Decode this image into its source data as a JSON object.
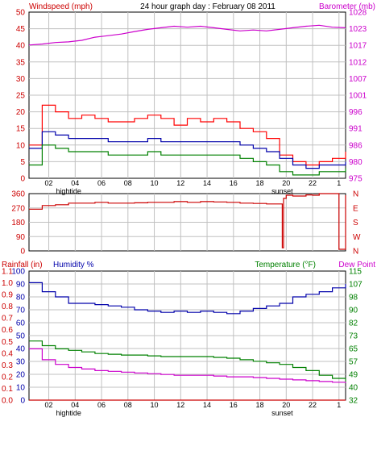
{
  "header": {
    "title": "24 hour graph day : February 08 2011",
    "left_label": "Windspeed (mph)",
    "right_label": "Barometer (mb)"
  },
  "x_axis": {
    "tick_labels": [
      "02",
      "04",
      "06",
      "08",
      "10",
      "12",
      "14",
      "16",
      "18",
      "20",
      "22",
      "1"
    ],
    "events": [
      {
        "x": 3.0,
        "label": "hightide"
      },
      {
        "x": 19.2,
        "label": "sunset"
      }
    ]
  },
  "colors": {
    "wind_speed": "#ff0000",
    "wind_avg": "#0000aa",
    "wind_low": "#008000",
    "barometer": "#cc00cc",
    "wind_dir": "#cc0000",
    "humidity": "#0000aa",
    "temperature": "#008000",
    "dew_point": "#cc00cc",
    "rainfall": "#cc0000",
    "grid": "#c0c0c0",
    "axis_red": "#cc0000",
    "axis_green": "#008000"
  },
  "chart_data": [
    {
      "type": "line",
      "title": "24 hour graph day : February 08 2011",
      "ylabel": "Windspeed (mph)",
      "y2label": "Barometer (mb)",
      "ylim": [
        0,
        50
      ],
      "y2lim": [
        975,
        1028
      ],
      "yticks": [
        "0",
        "5",
        "10",
        "15",
        "20",
        "25",
        "30",
        "35",
        "40",
        "45",
        "50"
      ],
      "y2ticks": [
        "975",
        "980",
        "986",
        "991",
        "996",
        "1001",
        "1007",
        "1012",
        "1017",
        "1023",
        "1028"
      ],
      "x": [
        0,
        1,
        2,
        3,
        4,
        5,
        6,
        7,
        8,
        9,
        10,
        11,
        12,
        13,
        14,
        15,
        16,
        17,
        18,
        19,
        20,
        21,
        22,
        23,
        24
      ],
      "series": [
        {
          "name": "Windspeed (mph)",
          "values": [
            10,
            22,
            20,
            18,
            19,
            18,
            17,
            17,
            18,
            19,
            18,
            16,
            18,
            17,
            18,
            17,
            15,
            14,
            12,
            7,
            5,
            4,
            5,
            6,
            8
          ]
        },
        {
          "name": "",
          "values": [
            9,
            14,
            13,
            12,
            12,
            12,
            11,
            11,
            11,
            12,
            11,
            11,
            11,
            11,
            11,
            11,
            10,
            9,
            8,
            6,
            4,
            3,
            4,
            4,
            5
          ]
        },
        {
          "name": "",
          "values": [
            4,
            10,
            9,
            8,
            8,
            8,
            7,
            7,
            7,
            8,
            7,
            7,
            7,
            7,
            7,
            7,
            6,
            5,
            4,
            2,
            1,
            1,
            2,
            2,
            3
          ]
        },
        {
          "name": "Barometer (mb)",
          "axis": "right",
          "values": [
            1017.5,
            1017.8,
            1018.3,
            1018.5,
            1019,
            1020,
            1020.5,
            1021,
            1021.8,
            1022.5,
            1023,
            1023.5,
            1023.2,
            1023.5,
            1023,
            1022.5,
            1022,
            1022.3,
            1022,
            1022.5,
            1023,
            1023.5,
            1023.8,
            1023.2,
            1023
          ]
        }
      ]
    },
    {
      "type": "line",
      "ylim": [
        0,
        360
      ],
      "yticks": [
        "0",
        "90",
        "180",
        "270",
        "360"
      ],
      "compass_labels": [
        "N",
        "W",
        "S",
        "E",
        "N"
      ],
      "x": [
        0,
        1,
        2,
        3,
        4,
        5,
        6,
        7,
        8,
        9,
        10,
        11,
        12,
        13,
        14,
        15,
        16,
        17,
        18,
        19,
        19.2,
        19.3,
        19.5,
        20,
        21,
        21.5,
        22,
        22.5,
        23,
        23.5,
        24
      ],
      "series": [
        {
          "name": "",
          "values": [
            262,
            285,
            290,
            300,
            300,
            305,
            300,
            300,
            302,
            305,
            305,
            310,
            305,
            310,
            308,
            305,
            300,
            298,
            295,
            295,
            20,
            330,
            350,
            345,
            352,
            350,
            360,
            360,
            360,
            10,
            350
          ]
        }
      ]
    },
    {
      "type": "line",
      "left_label_rain": "Rainfall (in)",
      "left_label_humidity": "Humidity %",
      "right_label": "Temperature (°F)",
      "right_label_2": "Dew Point",
      "ylim": [
        0,
        100
      ],
      "y2lim": [
        32,
        115
      ],
      "rain_ticks": [
        "0.0",
        "0.1",
        "0.2",
        "0.3",
        "0.4",
        "0.5",
        "0.6",
        "0.7",
        "0.8",
        "0.9",
        "1.0",
        "1.1"
      ],
      "humidity_ticks": [
        "0",
        "10",
        "20",
        "30",
        "40",
        "50",
        "60",
        "70",
        "80",
        "90",
        "100"
      ],
      "y2ticks": [
        "32",
        "40",
        "49",
        "57",
        "65",
        "73",
        "82",
        "90",
        "98",
        "107",
        "115"
      ],
      "x": [
        0,
        1,
        2,
        3,
        4,
        5,
        6,
        7,
        8,
        9,
        10,
        11,
        12,
        13,
        14,
        15,
        16,
        17,
        18,
        19,
        20,
        21,
        22,
        23,
        24
      ],
      "series": [
        {
          "name": "Humidity %",
          "values": [
            91,
            84,
            80,
            75,
            75,
            74,
            73,
            72,
            70,
            69,
            68,
            69,
            68,
            69,
            68,
            67,
            69,
            71,
            73,
            75,
            80,
            82,
            84,
            87,
            90
          ]
        },
        {
          "name": "Temperature (°F)",
          "axis": "right",
          "values": [
            70,
            67,
            65,
            64,
            63,
            62,
            61.5,
            61,
            61,
            60.5,
            60,
            60,
            60,
            60,
            59.5,
            59,
            58,
            57,
            56,
            55,
            53,
            51,
            48,
            46,
            44
          ]
        },
        {
          "name": "Dew Point",
          "axis": "right",
          "values": [
            65,
            58,
            55,
            53,
            52,
            51,
            50.5,
            50,
            49.5,
            49,
            48.5,
            48,
            48,
            48,
            47.5,
            47,
            47,
            46.5,
            46,
            45.5,
            45,
            44.5,
            44,
            43.5,
            43
          ]
        },
        {
          "name": "Rainfall (in)",
          "values": [
            0,
            0,
            0,
            0,
            0,
            0,
            0,
            0,
            0,
            0,
            0,
            0,
            0,
            0,
            0,
            0,
            0,
            0,
            0,
            0,
            0,
            0,
            0,
            0,
            0
          ]
        }
      ]
    }
  ]
}
